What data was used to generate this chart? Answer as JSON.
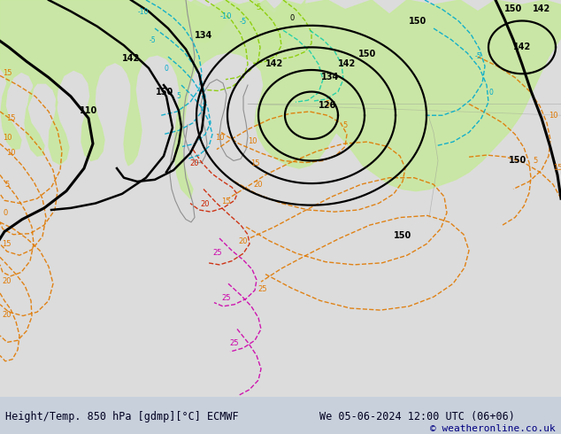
{
  "title_left": "Height/Temp. 850 hPa [gdmp][°C] ECMWF",
  "title_right": "We 05-06-2024 12:00 UTC (06+06)",
  "copyright": "© weatheronline.co.uk",
  "fig_width": 6.34,
  "fig_height": 4.9,
  "dpi": 100,
  "bg_color": "#c8d0dc",
  "map_bg": "#dcdcdc",
  "green_fill": "#c8e8a0",
  "light_green": "#d8f0b0",
  "bottom_bar_color": "#ffffff",
  "text_color_dark": "#000020",
  "text_color_blue": "#000080",
  "bottom_bar_height": 0.085,
  "font_size_bottom": 8.5,
  "font_size_copyright": 8,
  "orange_color": "#e07800",
  "red_color": "#cc2200",
  "magenta_color": "#cc00aa",
  "cyan_color": "#00aacc",
  "lime_color": "#88cc00",
  "teal_color": "#00ccaa",
  "gray_color": "#909090"
}
